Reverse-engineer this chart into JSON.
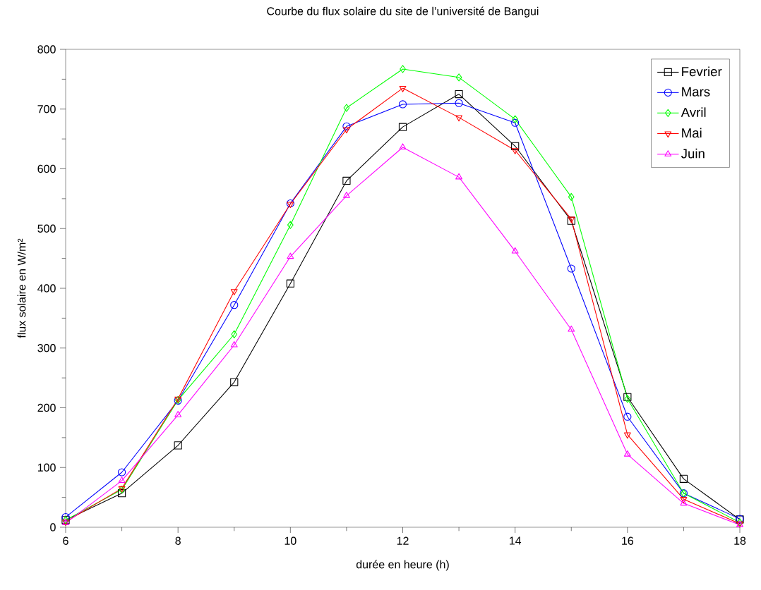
{
  "chart_data": {
    "type": "line",
    "title": "Courbe du flux solaire du site de l’université de Bangui",
    "xlabel": "durée en heure (h)",
    "ylabel": "flux solaire en W/m²",
    "x": [
      6,
      7,
      8,
      9,
      10,
      11,
      12,
      13,
      14,
      15,
      16,
      17,
      18
    ],
    "xlim": [
      6,
      18
    ],
    "xticks": [
      6,
      8,
      10,
      12,
      14,
      16,
      18
    ],
    "ylim": [
      0,
      800
    ],
    "yticks": [
      0,
      100,
      200,
      300,
      400,
      500,
      600,
      700,
      800
    ],
    "grid": false,
    "legend": "top right",
    "line_style": "solid",
    "series": [
      {
        "name": "Fevrier",
        "color": "#000000",
        "marker": "square",
        "values": [
          12,
          57,
          137,
          243,
          408,
          580,
          670,
          725,
          638,
          513,
          218,
          81,
          13
        ]
      },
      {
        "name": "Mars",
        "color": "#0000ff",
        "marker": "circle",
        "values": [
          17,
          92,
          212,
          372,
          542,
          671,
          708,
          710,
          677,
          433,
          185,
          57,
          14
        ]
      },
      {
        "name": "Avril",
        "color": "#00ff00",
        "marker": "diamond",
        "values": [
          12,
          63,
          213,
          323,
          506,
          702,
          767,
          753,
          683,
          553,
          215,
          57,
          8
        ]
      },
      {
        "name": "Mai",
        "color": "#ff0000",
        "marker": "triangle_down",
        "values": [
          9,
          65,
          215,
          395,
          541,
          666,
          735,
          686,
          631,
          516,
          155,
          47,
          6
        ]
      },
      {
        "name": "Juin",
        "color": "#ff00ff",
        "marker": "triangle",
        "values": [
          7,
          78,
          188,
          305,
          453,
          555,
          636,
          586,
          462,
          331,
          122,
          40,
          4
        ]
      }
    ]
  }
}
